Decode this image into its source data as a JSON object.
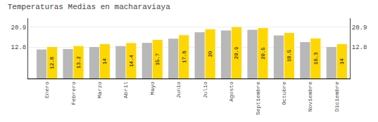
{
  "chart_data": {
    "type": "bar",
    "title": "Temperaturas Medias en macharaviaya",
    "categories": [
      "Enero",
      "Febrero",
      "Marzo",
      "Abril",
      "Mayo",
      "Junio",
      "Julio",
      "Agosto",
      "Septiembre",
      "Octubre",
      "Noviembre",
      "Diciembre"
    ],
    "series": [
      {
        "color": "#B8B8B8",
        "values": [
          11.8,
          12.0,
          12.8,
          13.2,
          14.5,
          16.2,
          18.8,
          19.5,
          19.8,
          17.5,
          14.8,
          12.8
        ]
      },
      {
        "color": "#FFD700",
        "values": [
          12.8,
          13.2,
          14.0,
          14.4,
          15.7,
          17.6,
          20.0,
          20.9,
          20.5,
          18.5,
          16.3,
          14.0
        ],
        "data_labels": true
      }
    ],
    "ylim": [
      0,
      24.5
    ],
    "yticks": [
      12.8,
      20.9
    ],
    "y2lim": [
      0,
      24.5
    ],
    "y2ticks": [
      12.8,
      20.9
    ],
    "grid": true
  }
}
